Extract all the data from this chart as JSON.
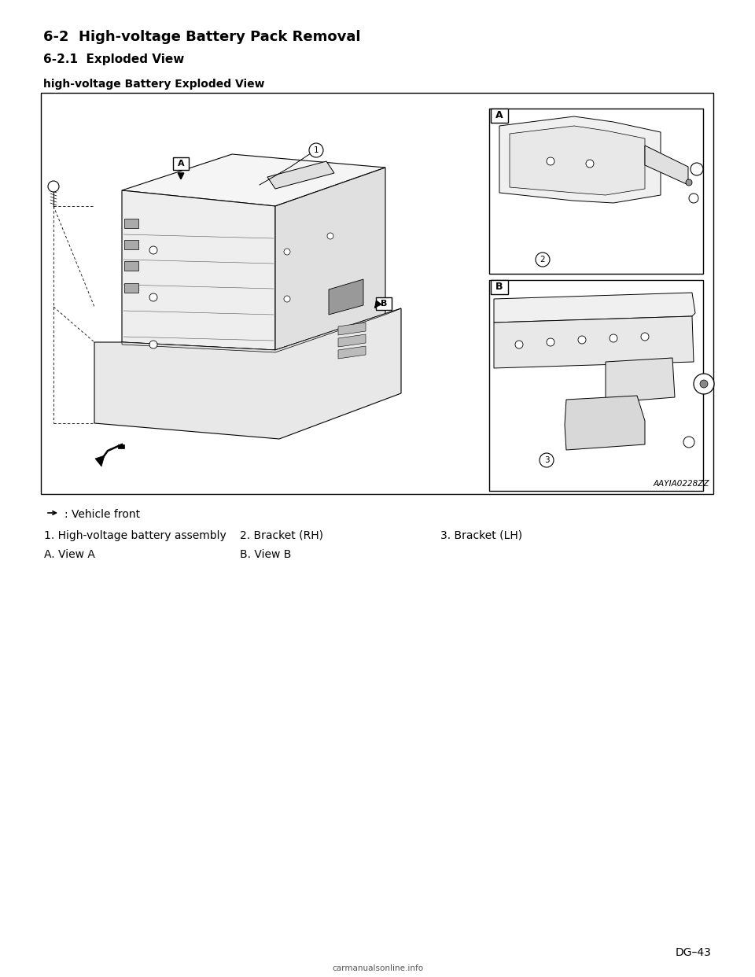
{
  "page_title": "6-2  High-voltage Battery Pack Removal",
  "section_title": "6-2.1  Exploded View",
  "diagram_title": "high-voltage Battery Exploded View",
  "image_code": "AAYIA0228ZZ",
  "vehicle_front_label": ": Vehicle front",
  "item1": "1. High-voltage battery assembly",
  "item2": "2. Bracket (RH)",
  "item3": "3. Bracket (LH)",
  "itemA": "A. View A",
  "itemB": "B. View B",
  "page_num": "DG–43",
  "watermark": "carmanualsonline.info",
  "bg_color": "#ffffff"
}
